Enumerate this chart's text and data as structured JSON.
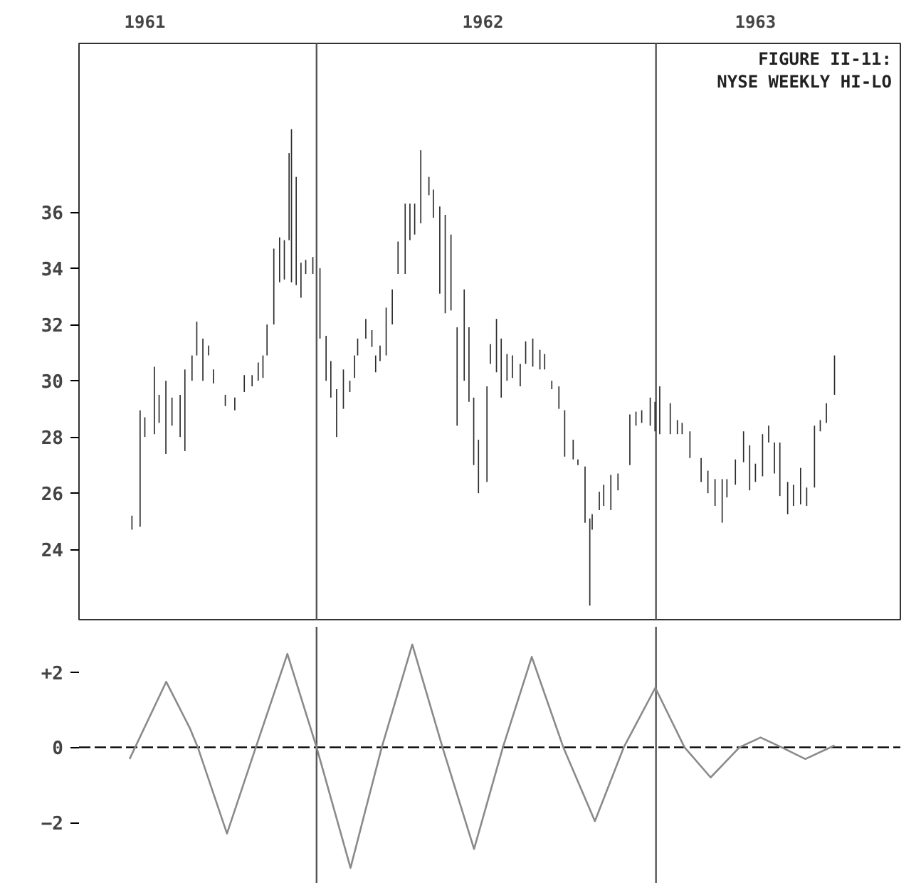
{
  "chart_data": [
    {
      "type": "bar",
      "title": "FIGURE II-11:",
      "subtitle": "NYSE WEEKLY HI-LO",
      "x": [
        1961.456,
        1961.48,
        1961.494,
        1961.522,
        1961.536,
        1961.556,
        1961.574,
        1961.598,
        1961.612,
        1961.633,
        1961.647,
        1961.665,
        1961.682,
        1961.696,
        1961.731,
        1961.759,
        1961.787,
        1961.81,
        1961.828,
        1961.842,
        1961.854,
        1961.874,
        1961.891,
        1961.905,
        1961.919,
        1961.926,
        1961.94,
        1961.954,
        1961.968,
        1961.989,
        1962.01,
        1962.028,
        1962.042,
        1962.059,
        1962.079,
        1962.098,
        1962.112,
        1962.121,
        1962.145,
        1962.163,
        1962.174,
        1962.187,
        1962.205,
        1962.223,
        1962.24,
        1962.261,
        1962.275,
        1962.289,
        1962.307,
        1962.331,
        1962.344,
        1962.363,
        1962.379,
        1962.396,
        1962.414,
        1962.435,
        1962.449,
        1962.463,
        1962.477,
        1962.502,
        1962.512,
        1962.53,
        1962.544,
        1962.561,
        1962.577,
        1962.6,
        1962.616,
        1962.637,
        1962.658,
        1962.672,
        1962.693,
        1962.714,
        1962.731,
        1962.756,
        1962.77,
        1962.791,
        1962.805,
        1962.812,
        1962.833,
        1962.846,
        1962.867,
        1962.888,
        1962.923,
        1962.941,
        1962.958,
        1962.983,
        1962.997,
        1963.011,
        1963.042,
        1963.063,
        1963.077,
        1963.1,
        1963.133,
        1963.153,
        1963.174,
        1963.195,
        1963.209,
        1963.234,
        1963.258,
        1963.276,
        1963.293,
        1963.314,
        1963.332,
        1963.349,
        1963.365,
        1963.388,
        1963.405,
        1963.426,
        1963.444,
        1963.467,
        1963.484,
        1963.502,
        1963.526
      ],
      "base": [
        24.7,
        24.8,
        28.0,
        28.1,
        28.5,
        27.4,
        28.4,
        28.0,
        27.5,
        30.0,
        30.9,
        30.0,
        30.9,
        29.9,
        29.1,
        28.95,
        29.6,
        29.8,
        30.0,
        30.1,
        30.9,
        32.0,
        33.5,
        33.6,
        35.0,
        33.5,
        33.4,
        32.95,
        33.8,
        33.8,
        31.5,
        30.0,
        29.4,
        28.0,
        29.0,
        29.6,
        30.1,
        30.9,
        31.5,
        31.2,
        30.3,
        30.7,
        30.9,
        32.0,
        33.8,
        33.8,
        35.0,
        35.2,
        35.6,
        36.6,
        35.8,
        33.1,
        32.4,
        32.5,
        28.4,
        30.0,
        29.25,
        27.0,
        26.0,
        26.4,
        30.6,
        30.3,
        29.4,
        30.0,
        30.1,
        29.8,
        30.6,
        30.5,
        30.4,
        30.4,
        29.7,
        29.0,
        27.3,
        27.2,
        27.0,
        24.95,
        22.0,
        24.7,
        25.4,
        25.55,
        25.4,
        26.1,
        27.0,
        28.4,
        28.5,
        28.4,
        28.2,
        28.1,
        28.1,
        28.1,
        28.1,
        27.25,
        26.4,
        26.0,
        25.55,
        24.95,
        25.85,
        26.3,
        27.1,
        26.1,
        26.4,
        26.6,
        27.8,
        26.7,
        25.9,
        25.25,
        25.55,
        25.6,
        25.55,
        26.2,
        28.2,
        28.5,
        29.5
      ],
      "values": [
        0.5,
        4.15,
        0.7,
        2.4,
        1.0,
        2.6,
        1.0,
        1.5,
        2.9,
        0.9,
        1.2,
        1.5,
        0.35,
        0.5,
        0.4,
        0.45,
        0.6,
        0.4,
        0.65,
        0.8,
        1.1,
        2.7,
        1.6,
        1.4,
        3.1,
        5.45,
        3.85,
        1.25,
        0.5,
        0.6,
        2.5,
        1.6,
        1.3,
        1.7,
        1.4,
        0.4,
        0.8,
        0.6,
        0.7,
        0.6,
        0.6,
        0.55,
        1.7,
        1.25,
        1.15,
        2.5,
        1.3,
        1.1,
        2.6,
        0.65,
        1.0,
        3.1,
        3.5,
        2.7,
        3.5,
        3.25,
        2.65,
        2.4,
        1.9,
        3.4,
        0.7,
        1.9,
        2.1,
        0.95,
        0.8,
        0.8,
        0.8,
        1.0,
        0.7,
        0.55,
        0.3,
        0.8,
        1.65,
        0.7,
        0.2,
        2.0,
        3.1,
        0.55,
        0.65,
        0.75,
        1.25,
        0.6,
        1.8,
        0.5,
        0.45,
        1.0,
        1.05,
        1.7,
        1.1,
        0.5,
        0.4,
        0.95,
        0.85,
        0.8,
        0.95,
        1.55,
        0.65,
        0.9,
        1.1,
        1.6,
        0.65,
        1.5,
        0.6,
        1.1,
        1.9,
        1.15,
        0.75,
        1.3,
        0.65,
        2.2,
        0.4,
        0.7,
        1.4
      ],
      "color": "#2b2b2b",
      "xlim": [
        1961.3,
        1963.72
      ],
      "ylim": [
        21.5,
        42
      ],
      "xticks": [
        {
          "value": 1961.494,
          "label": "1961"
        },
        {
          "value": 1962.49,
          "label": "1962"
        },
        {
          "value": 1963.293,
          "label": "1963"
        }
      ],
      "yticks": [
        24,
        26,
        28,
        30,
        32,
        34,
        36
      ],
      "ref_lines": [
        {
          "axis": "x",
          "value": 1962,
          "color": "#555555"
        },
        {
          "axis": "x",
          "value": 1963,
          "color": "#555555"
        }
      ]
    },
    {
      "type": "line",
      "color": "#8a8a8a",
      "x": [
        1961.449,
        1961.557,
        1961.627,
        1961.65,
        1961.736,
        1961.821,
        1961.914,
        1962.0,
        1962.1,
        1962.192,
        1962.282,
        1962.371,
        1962.464,
        1962.549,
        1962.634,
        1962.727,
        1962.82,
        1962.905,
        1962.998,
        1963.084,
        1963.161,
        1963.246,
        1963.308,
        1963.37,
        1963.44,
        1963.526
      ],
      "values": [
        -0.31,
        1.74,
        0.5,
        0,
        -2.29,
        0,
        2.48,
        0,
        -3.2,
        0,
        2.73,
        0,
        -2.7,
        0,
        2.4,
        0,
        -1.96,
        0,
        1.58,
        0,
        -0.8,
        0,
        0.26,
        0,
        -0.31,
        0.05
      ],
      "xlim": [
        1961.3,
        1963.72
      ],
      "ylim": [
        -3.6,
        3.2
      ],
      "yticks": [
        {
          "value": 2,
          "label": "+2"
        },
        0,
        -2
      ],
      "tick_labels": "y",
      "ref_lines": [
        {
          "axis": "x",
          "value": 1962,
          "color": "#555555"
        },
        {
          "axis": "x",
          "value": 1963,
          "color": "#555555"
        },
        {
          "axis": "y",
          "value": 0,
          "color": "#000000",
          "line_style": "dashed"
        }
      ]
    }
  ]
}
